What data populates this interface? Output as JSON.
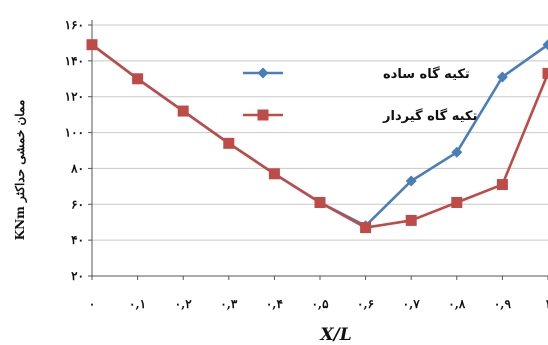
{
  "chart_data": {
    "type": "line",
    "xlabel": "X/L",
    "ylabel": "KNm ممان خمشی حداکثر",
    "x": [
      0,
      0.1,
      0.2,
      0.3,
      0.4,
      0.5,
      0.6,
      0.7,
      0.8,
      0.9,
      1.0
    ],
    "xticklabels": [
      "۰",
      "۰,۱",
      "۰,۲",
      "۰,۳",
      "۰,۴",
      "۰,۵",
      "۰,۶",
      "۰,۷",
      "۰,۸",
      "۰,۹",
      "۱"
    ],
    "ylim": [
      20,
      160
    ],
    "yticks": [
      20,
      40,
      60,
      80,
      100,
      120,
      140,
      160
    ],
    "yticklabels": [
      "۲۰",
      "۴۰",
      "۶۰",
      "۸۰",
      "۱۰۰",
      "۱۲۰",
      "۱۴۰",
      "۱۶۰"
    ],
    "grid": true,
    "legend_position": "upper-middle",
    "series": [
      {
        "name": "تکیه گاه ساده",
        "color": "#4a7ebb",
        "marker": "diamond",
        "values": [
          149,
          130,
          112,
          94,
          77,
          61,
          48,
          73,
          89,
          131,
          149
        ]
      },
      {
        "name": "تکیه گاه گیردار",
        "color": "#be4b48",
        "marker": "square",
        "values": [
          149,
          130,
          112,
          94,
          77,
          61,
          47,
          51,
          61,
          71,
          133
        ]
      }
    ]
  }
}
